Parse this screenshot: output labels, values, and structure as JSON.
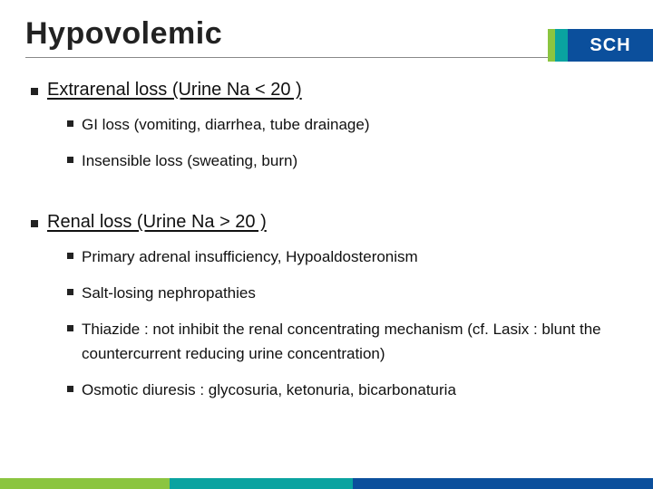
{
  "title": "Hypovolemic",
  "logo": {
    "text": "SCH"
  },
  "colors": {
    "green": "#8bc540",
    "teal": "#0aa3a0",
    "blue": "#0b4f9c",
    "text": "#111111",
    "rule": "#888888",
    "background": "#ffffff"
  },
  "typography": {
    "title_fontsize": 34,
    "lvl1_fontsize": 20,
    "lvl2_fontsize": 17,
    "font_family": "Malgun Gothic / Segoe UI"
  },
  "sections": [
    {
      "heading": "Extrarenal loss (Urine Na < 20 )",
      "items": [
        {
          "text": "GI loss (vomiting, diarrhea, tube drainage)"
        },
        {
          "text": "Insensible loss (sweating, burn)"
        }
      ]
    },
    {
      "heading": "Renal loss (Urine Na > 20 )",
      "items": [
        {
          "text": "Primary adrenal insufficiency, Hypoaldosteronism"
        },
        {
          "text": "Salt-losing nephropathies"
        },
        {
          "text": "Thiazide : not inhibit the renal concentrating mechanism (cf. Lasix : blunt the countercurrent reducing urine concentration)"
        },
        {
          "text": "Osmotic diuresis : glycosuria, ketonuria, bicarbonaturia"
        }
      ]
    }
  ]
}
